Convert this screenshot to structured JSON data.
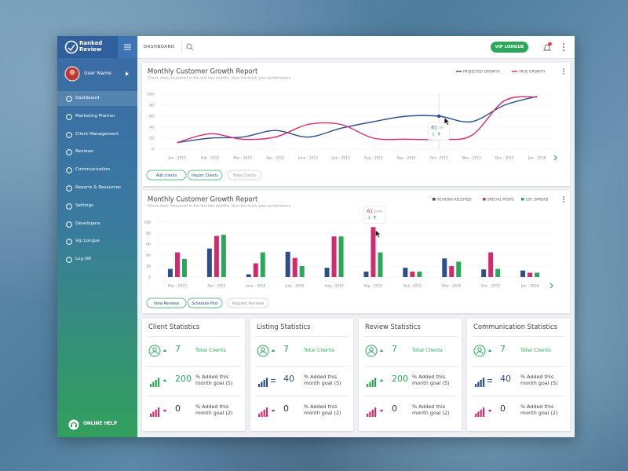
{
  "sidebar": {
    "brand": [
      "Ranked",
      "Review"
    ],
    "user": "User Name",
    "menu": [
      "Dashboard",
      "Marketing Planner",
      "Client Management",
      "Reviews",
      "Communication",
      "Reports & Resources",
      "Settings",
      "Developers",
      "Vip Longue",
      "Log Off"
    ],
    "help": "ONLINE HELP"
  },
  "topbar": {
    "title": "DASHBOARD",
    "button": "VIP LONGUE"
  },
  "panels": [
    {
      "title": "Monthly Customer Growth Report",
      "subtitle": "Check stats measured in the last two months. blue line track your performance",
      "chart_data": {
        "type": "line",
        "categories": [
          "Jan - 2015",
          "Feb - 2015",
          "Mar - 2015",
          "Apr - 2015",
          "June - 2015",
          "July - 2015",
          "Aug - 2015",
          "Sep - 2015",
          "Oct - 2015",
          "Nov - 2015",
          "Dec - 2015",
          "Jan - 2016"
        ],
        "series": [
          {
            "name": "PROJECTED GROWTH",
            "color": "#2c4f8a",
            "values": [
              12,
              20,
              22,
              34,
              22,
              38,
              50,
              60,
              60,
              50,
              80,
              96
            ]
          },
          {
            "name": "TRUE GROWTH",
            "color": "#d6286e",
            "values": [
              12,
              28,
              18,
              22,
              45,
              45,
              20,
              18,
              18,
              25,
              88,
              95
            ]
          }
        ],
        "ylim": [
          0,
          100
        ],
        "yticks": [
          0,
          20,
          40,
          60,
          80,
          100
        ],
        "grid": true
      },
      "tooltip": {
        "value": 61,
        "unit": "clls",
        "change": 1
      },
      "buttons": [
        "Add clients",
        "Import Clients",
        "View Clients"
      ]
    },
    {
      "title": "Monthly Customer Growth Report",
      "subtitle": "Check stats measured in the last two months. blue line track your performance",
      "chart_data": {
        "type": "bar",
        "categories": [
          "Mar - 2015",
          "Apr - 2015",
          "June - 2015",
          "July - 2015",
          "Aug - 2015",
          "Sep - 2015",
          "Oct - 2015",
          "Nov - 2015",
          "Dec - 2015",
          "Jan - 2016"
        ],
        "series": [
          {
            "name": "REVIEWS RECEIVED",
            "color": "#2c4f8a",
            "values": [
              15,
              52,
              5,
              46,
              17,
              10,
              17,
              34,
              14,
              12
            ]
          },
          {
            "name": "SPECIAL POSTS",
            "color": "#d6286e",
            "values": [
              45,
              75,
              25,
              35,
              74,
              91,
              10,
              20,
              45,
              8
            ]
          },
          {
            "name": "EST. SPREAD",
            "color": "#2aa85a",
            "values": [
              33,
              77,
              45,
              20,
              74,
              45,
              10,
              28,
              15,
              8
            ]
          }
        ],
        "ylim": [
          0,
          100
        ],
        "yticks": [
          0,
          20,
          40,
          60,
          80,
          100
        ],
        "grid": true
      },
      "tooltip": {
        "value": 61,
        "unit": "posts",
        "change": 1
      },
      "buttons": [
        "View Reviews",
        "Schedule Post",
        "Request Reviews"
      ]
    }
  ],
  "stats": [
    {
      "title": "Client Statistics",
      "rows": [
        {
          "value": 7,
          "label": "Total Clients",
          "trend": "up",
          "color": "#2aa85a"
        },
        {
          "value": 200,
          "label": "% Added this month goal (5)",
          "trend": "up",
          "color": "#2aa85a"
        },
        {
          "value": 0,
          "label": "% Added this month goal (2)",
          "trend": "down",
          "color": "#d6286e"
        }
      ]
    },
    {
      "title": "Listing Statistics",
      "rows": [
        {
          "value": 7,
          "label": "Total Clients",
          "trend": "up",
          "color": "#2aa85a"
        },
        {
          "value": 40,
          "label": "% Added this month goal (5)",
          "trend": "flat",
          "color": "#2c4f8a"
        },
        {
          "value": 0,
          "label": "% Added this month goal (2)",
          "trend": "down",
          "color": "#d6286e"
        }
      ]
    },
    {
      "title": "Review Statistics",
      "rows": [
        {
          "value": 7,
          "label": "Total Clients",
          "trend": "up",
          "color": "#2aa85a"
        },
        {
          "value": 200,
          "label": "% Added this month goal (5)",
          "trend": "up",
          "color": "#2aa85a"
        },
        {
          "value": 0,
          "label": "% Added this month goal (2)",
          "trend": "down",
          "color": "#d6286e"
        }
      ]
    },
    {
      "title": "Communication Statistics",
      "rows": [
        {
          "value": 7,
          "label": "Total Clients",
          "trend": "up",
          "color": "#2aa85a"
        },
        {
          "value": 40,
          "label": "% Added this month goal (5)",
          "trend": "flat",
          "color": "#2c4f8a"
        },
        {
          "value": 0,
          "label": "% Added this month goal (2)",
          "trend": "down",
          "color": "#d6286e"
        }
      ]
    }
  ]
}
